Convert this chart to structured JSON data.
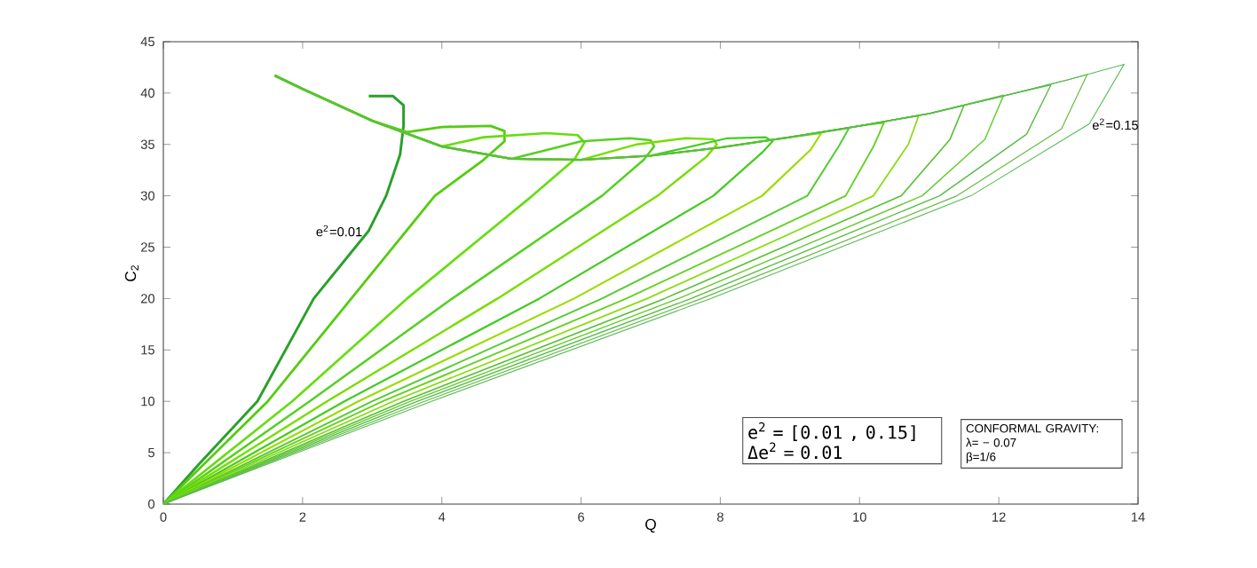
{
  "chart_data": {
    "type": "line",
    "xlabel": "Q",
    "ylabel": "C$_{2}$",
    "xlim": [
      0,
      14
    ],
    "xticks": [
      0,
      2,
      4,
      6,
      8,
      10,
      12,
      14
    ],
    "ylim": [
      0,
      45
    ],
    "yticks": [
      0,
      5,
      10,
      15,
      20,
      25,
      30,
      35,
      40,
      45
    ],
    "annotations": [
      {
        "text": "e$^{2}$=0.01",
        "x": 2.95,
        "y": 26.6
      },
      {
        "text": "e$^{2}$=0.15",
        "x": 13.3,
        "y": 37.8
      },
      "e$^{2}$ = [0.01 , 0.15]",
      "Δe$^{2}$ = 0.01",
      "CONFORMAL GRAVITY:",
      "λ= − 0.07",
      "β=1/6"
    ],
    "series": [
      {
        "color": "#2aa02a",
        "x": [
          0,
          0.5,
          1.35,
          2.16,
          2.95,
          3.2,
          3.4,
          3.45,
          3.45,
          3.3,
          2.95
        ],
        "values": [
          0,
          3.8,
          10,
          20,
          26.6,
          30,
          34,
          36.8,
          38.8,
          39.7,
          39.7
        ]
      },
      {
        "color": "#55cc11",
        "x": [
          0,
          1.5,
          2.7,
          3.9,
          4.6,
          4.9,
          4.9,
          4.7,
          4.0,
          3.5,
          3,
          2,
          1.6
        ],
        "values": [
          0,
          10,
          20,
          30,
          33.5,
          35.3,
          36.3,
          36.8,
          36.7,
          36.2,
          37.3,
          40.4,
          41.7
        ]
      },
      {
        "color": "#66dd11",
        "x": [
          0,
          1.85,
          3.5,
          5.3,
          5.9,
          6.05,
          5.95,
          5.5,
          4.6,
          4,
          3,
          2,
          1.6
        ],
        "values": [
          0,
          10,
          20,
          30,
          33.5,
          35.2,
          35.9,
          36.1,
          35.7,
          34.8,
          37.3,
          40.4,
          41.7
        ]
      },
      {
        "color": "#55d022",
        "x": [
          0,
          2.1,
          4.15,
          6.3,
          6.9,
          7.05,
          7.0,
          6.7,
          6.0,
          5,
          4,
          3,
          2,
          1.6
        ],
        "values": [
          0,
          10,
          20,
          30,
          33.5,
          34.8,
          35.4,
          35.6,
          35.3,
          33.6,
          34.8,
          37.3,
          40.4,
          41.7
        ]
      },
      {
        "color": "#77dd00",
        "x": [
          0,
          2.35,
          4.8,
          7.1,
          7.8,
          7.95,
          7.9,
          7.5,
          6.8,
          6,
          5,
          4,
          3,
          2,
          1.6
        ],
        "values": [
          0,
          10,
          20,
          30,
          33.8,
          35.0,
          35.5,
          35.6,
          35.0,
          33.5,
          33.6,
          34.8,
          37.3,
          40.4,
          41.7
        ]
      },
      {
        "color": "#44cc22",
        "x": [
          0,
          2.6,
          5.4,
          7.9,
          8.6,
          8.75,
          8.65,
          8.1,
          7,
          6,
          5,
          4,
          3,
          2,
          1.6
        ],
        "values": [
          0,
          10,
          20,
          30,
          34.2,
          35.3,
          35.7,
          35.6,
          33.9,
          33.5,
          33.6,
          34.8,
          37.3,
          40.4,
          41.7
        ]
      },
      {
        "color": "#99dd00",
        "x": [
          0,
          2.8,
          5.9,
          8.6,
          9.3,
          9.45,
          9,
          8,
          7,
          6,
          5,
          4,
          3,
          2,
          1.6
        ],
        "values": [
          0,
          10,
          20,
          30,
          34.5,
          36.1,
          35.7,
          34.7,
          33.9,
          33.5,
          33.6,
          34.8,
          37.3,
          40.4,
          41.7
        ]
      },
      {
        "color": "#55cc33",
        "x": [
          0,
          3.0,
          6.3,
          9.25,
          9.7,
          9.85,
          9,
          8,
          7,
          6,
          5,
          4,
          3,
          2,
          1.6
        ],
        "values": [
          0,
          10,
          20,
          30,
          34.8,
          36.6,
          35.7,
          34.7,
          33.9,
          33.5,
          33.6,
          34.8,
          37.3,
          40.4,
          41.7
        ]
      },
      {
        "color": "#66d022",
        "x": [
          0,
          3.15,
          6.65,
          9.8,
          10.2,
          10.35,
          10,
          9,
          8,
          7,
          6,
          5,
          4,
          3,
          2,
          1.6
        ],
        "values": [
          0,
          10,
          20,
          30,
          34.8,
          37.1,
          36.8,
          35.7,
          34.7,
          33.9,
          33.5,
          33.6,
          34.8,
          37.3,
          40.4,
          41.7
        ]
      },
      {
        "color": "#88dd11",
        "x": [
          0,
          3.3,
          6.95,
          10.2,
          10.7,
          10.85,
          10,
          9,
          8,
          7,
          6,
          5,
          4,
          3,
          2,
          1.6
        ],
        "values": [
          0,
          10,
          20,
          30,
          35,
          37.8,
          36.8,
          35.7,
          34.7,
          33.9,
          33.5,
          33.6,
          34.8,
          37.3,
          40.4,
          41.7
        ]
      },
      {
        "color": "#55c033",
        "x": [
          0,
          3.45,
          7.2,
          10.6,
          11.3,
          11.5,
          11,
          10,
          9,
          8,
          7,
          6,
          5,
          4,
          3,
          2,
          1.6
        ],
        "values": [
          0,
          10,
          20,
          30,
          35.5,
          38.8,
          38.0,
          36.8,
          35.7,
          34.7,
          33.9,
          33.5,
          33.6,
          34.8,
          37.3,
          40.4,
          41.7
        ]
      },
      {
        "color": "#66cc33",
        "x": [
          0,
          3.55,
          7.4,
          10.9,
          11.8,
          12.07,
          11,
          10,
          9,
          8,
          7,
          6,
          5,
          4,
          3,
          2,
          1.6
        ],
        "values": [
          0,
          10,
          20,
          30,
          35.5,
          39.8,
          38.0,
          36.8,
          35.7,
          34.7,
          33.9,
          33.5,
          33.6,
          34.8,
          37.3,
          40.4,
          41.7
        ]
      },
      {
        "color": "#55bb44",
        "x": [
          0,
          3.65,
          7.58,
          11.15,
          12.4,
          12.75,
          12,
          11,
          10,
          9,
          8,
          7,
          6,
          5,
          4,
          3,
          2,
          1.6
        ],
        "values": [
          0,
          10,
          20,
          30,
          36,
          40.8,
          39.6,
          38.0,
          36.8,
          35.7,
          34.7,
          33.9,
          33.5,
          33.6,
          34.8,
          37.3,
          40.4,
          41.7
        ]
      },
      {
        "color": "#66bb44",
        "x": [
          0,
          3.75,
          7.73,
          11.4,
          12.9,
          13.27,
          13,
          12,
          11,
          10,
          9,
          8,
          7,
          6,
          5,
          4,
          3,
          2,
          1.6
        ],
        "values": [
          0,
          10,
          20,
          30,
          36.5,
          41.8,
          41.3,
          39.6,
          38.0,
          36.8,
          35.7,
          34.7,
          33.9,
          33.5,
          33.6,
          34.8,
          37.3,
          40.4,
          41.7
        ]
      },
      {
        "color": "#55bb55",
        "x": [
          0,
          3.85,
          7.86,
          11.6,
          13.3,
          13.8,
          13,
          12,
          11,
          10,
          9,
          8,
          7,
          6,
          5,
          4,
          3,
          2,
          1.6
        ],
        "values": [
          0,
          10,
          20,
          30,
          37,
          42.8,
          41.3,
          39.6,
          38.0,
          36.8,
          35.7,
          34.7,
          33.9,
          33.5,
          33.6,
          34.8,
          37.3,
          40.4,
          41.7
        ]
      }
    ]
  }
}
